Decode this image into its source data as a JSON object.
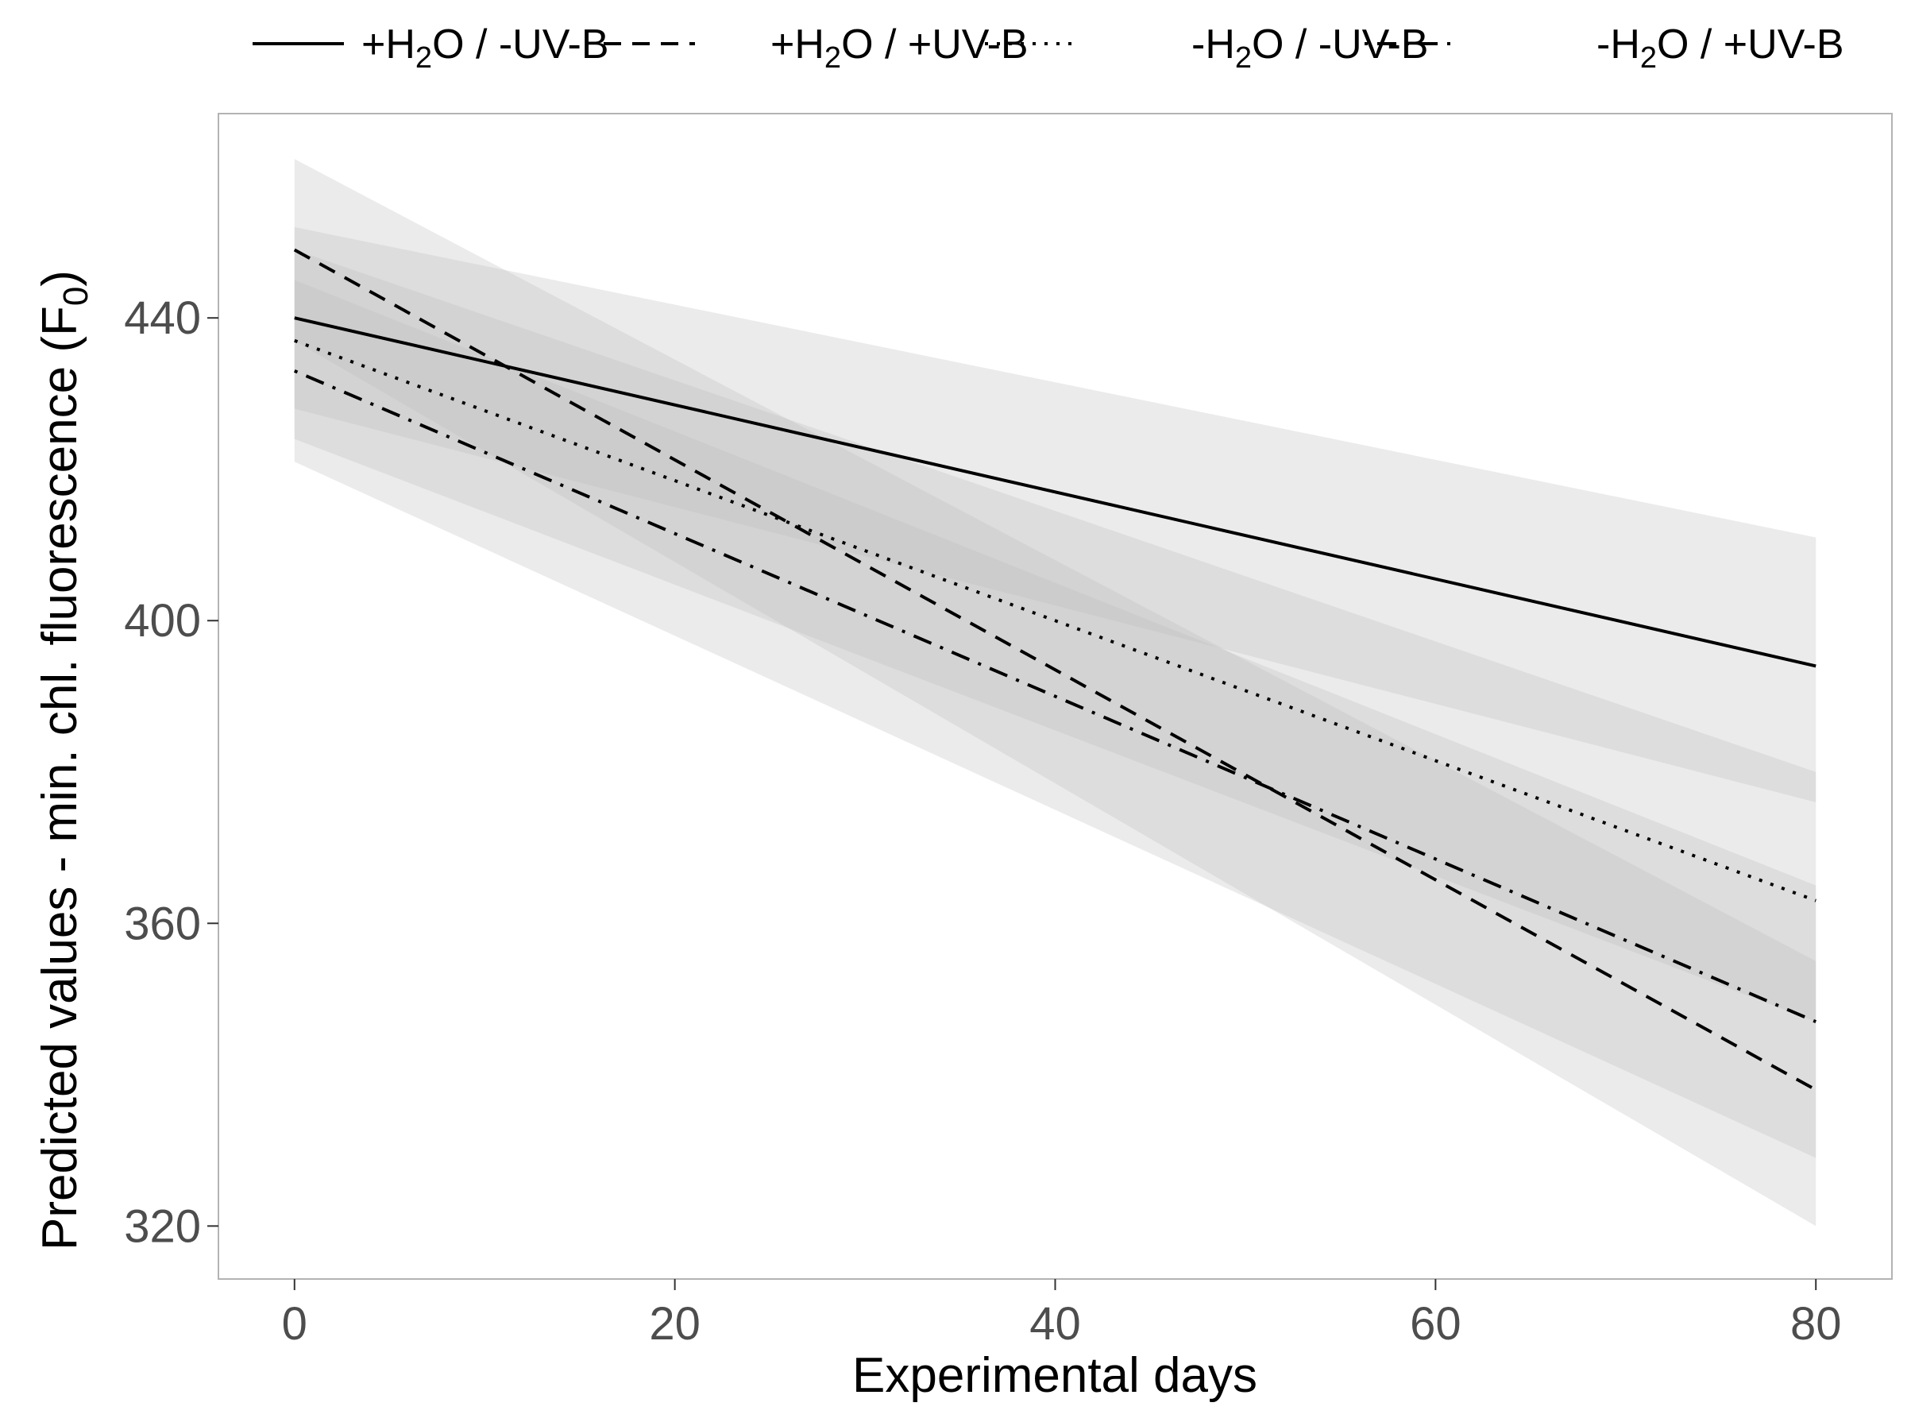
{
  "chart_data": {
    "type": "line",
    "title": "",
    "xlabel": "Experimental days",
    "ylabel": "Predicted values - min. chl. fluorescence (F",
    "ylabel_subscript": "0",
    "ylabel_close": ")",
    "xlim": [
      -4,
      84
    ],
    "ylim": [
      313,
      467
    ],
    "xticks": [
      0,
      20,
      40,
      60,
      80
    ],
    "yticks": [
      320,
      360,
      400,
      440
    ],
    "grid": false,
    "legend_position": "top",
    "series": [
      {
        "name": "+H2O / -UV-B",
        "label_pre": "+H",
        "label_sub": "2",
        "label_post": "O / -UV-B",
        "dash": "solid",
        "x": [
          0,
          80
        ],
        "y": [
          440,
          394
        ],
        "ci_lower": [
          428,
          376
        ],
        "ci_upper": [
          452,
          411
        ]
      },
      {
        "name": "+H2O / +UV-B",
        "label_pre": "+H",
        "label_sub": "2",
        "label_post": "O / +UV-B",
        "dash": "dashed",
        "x": [
          0,
          80
        ],
        "y": [
          449,
          338
        ],
        "ci_lower": [
          437,
          320
        ],
        "ci_upper": [
          461,
          355
        ]
      },
      {
        "name": "-H2O / -UV-B",
        "label_pre": "-H",
        "label_sub": "2",
        "label_post": "O / -UV-B",
        "dash": "dotted",
        "x": [
          0,
          80
        ],
        "y": [
          437,
          363
        ],
        "ci_lower": [
          424,
          347
        ],
        "ci_upper": [
          449,
          380
        ]
      },
      {
        "name": "-H2O / +UV-B",
        "label_pre": "-H",
        "label_sub": "2",
        "label_post": "O / +UV-B",
        "dash": "dotdash",
        "x": [
          0,
          80
        ],
        "y": [
          433,
          347
        ],
        "ci_lower": [
          421,
          329
        ],
        "ci_upper": [
          445,
          365
        ]
      }
    ],
    "colors": {
      "line": "#000000",
      "ribbon": "#bdbdbd",
      "panel_border": "#b3b3b3",
      "tick_text": "#4d4d4d"
    }
  }
}
